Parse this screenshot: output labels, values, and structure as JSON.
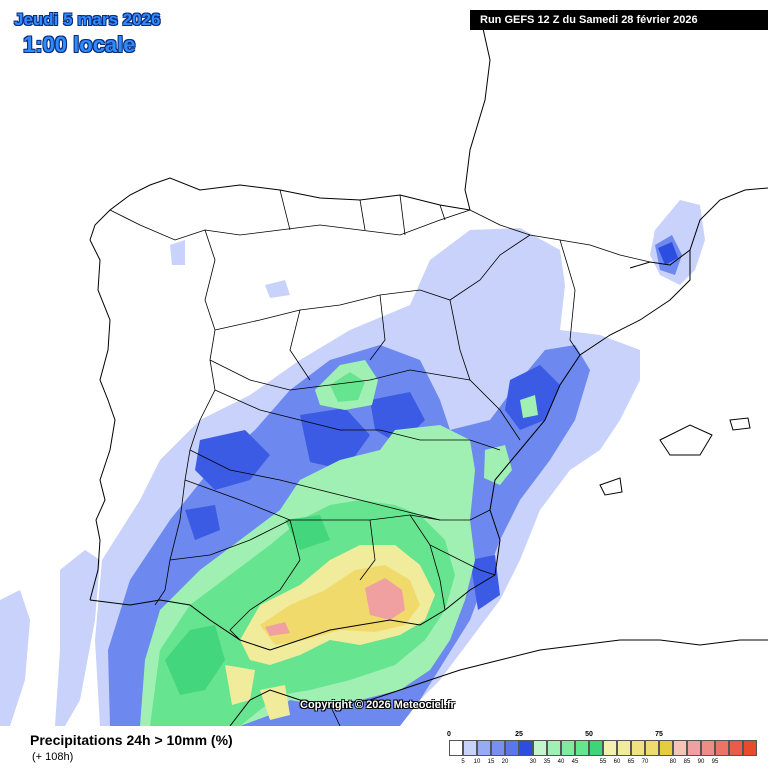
{
  "header": {
    "date_label": "Jeudi 5 mars 2026",
    "time_label": "1:00 locale",
    "run_label": "Run GEFS 12 Z du Samedi 28 février 2026"
  },
  "map": {
    "copyright": "Copyright © 2026 Meteociel.fr",
    "parameter_title": "Precipitations 24h > 10mm (%)",
    "lead_time": "(+ 108h)",
    "region": "Iberian Peninsula",
    "colors": {
      "very_light_blue": "#c8d2fa",
      "light_blue": "#96aaf5",
      "blue": "#5a78ec",
      "dark_blue": "#2c4ee0",
      "light_green": "#a0f0b4",
      "green": "#64e68c",
      "dark_green": "#3cd678",
      "light_yellow": "#f0ec9c",
      "yellow": "#f0dc6e",
      "salmon": "#f0a0a0"
    }
  },
  "legend": {
    "major_labels": [
      {
        "text": "0",
        "value": 0
      },
      {
        "text": "25",
        "value": 25
      },
      {
        "text": "50",
        "value": 50
      },
      {
        "text": "75",
        "value": 75
      }
    ],
    "minor_labels": [
      "5",
      "10",
      "15",
      "20",
      "30",
      "35",
      "40",
      "45",
      "55",
      "60",
      "65",
      "70",
      "80",
      "85",
      "90",
      "95"
    ],
    "swatch_colors": [
      "#ffffff",
      "#c8d2fa",
      "#96aaf5",
      "#7890ef",
      "#5a78ec",
      "#2c4ee0",
      "#c4f6cc",
      "#a0f0b4",
      "#80ea9e",
      "#64e68c",
      "#3cd678",
      "#f4f0b0",
      "#f0ec9c",
      "#f0e27e",
      "#f0dc6e",
      "#e8cc40",
      "#f4c4b4",
      "#f0a0a0",
      "#ee8c86",
      "#ec7466",
      "#ea5c4a",
      "#e84a2c"
    ]
  }
}
